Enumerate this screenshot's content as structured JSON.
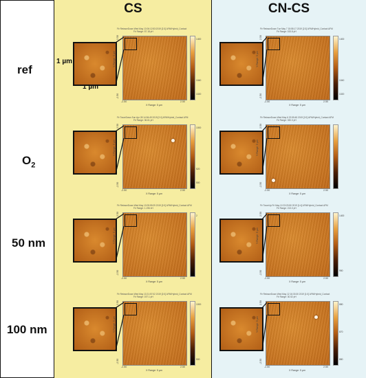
{
  "columns": {
    "cs": "CS",
    "cncs": "CN-CS"
  },
  "rows": [
    {
      "label": "ref"
    },
    {
      "label": "O",
      "sub": "2"
    },
    {
      "label": "50 nm"
    },
    {
      "label": "100 nm"
    }
  ],
  "scale": {
    "vertical": "1 µm",
    "horizontal": "1 µm"
  },
  "panels": {
    "cs": [
      {
        "header": "Fir RetraceDown Wed May 13 06:12:53:2019 [2:3] AFM/Hybrid_Contact",
        "range": "Fir Range: 57.18 pH",
        "cb_ticks": [
          "1400",
          "",
          "",
          "1040",
          "1020"
        ]
      },
      {
        "header": "Fir TraceDown Sun Apr 28 14:54:49 2019 [2:0] AFM/Hybrid_Contact AFM",
        "range": "Fir Range: 36.61 pH",
        "cb_ticks": [
          "1000",
          "",
          "",
          "520",
          "500"
        ]
      },
      {
        "header": "Fir RetraceDown Wed May 13 05:59:29 2019 [2:0] AFM/Hybrid_Contact AFM",
        "range": "Fir Range: 1.196 nH",
        "cb_ticks": [
          "2",
          "",
          "",
          "",
          ""
        ]
      },
      {
        "header": "Fir RetraceDown Wed May 13 21:57:02 2019 [2:0] AFM/Hybrid_Contact AFM",
        "range": "Fir Range: 197.1 pH",
        "cb_ticks": [
          "1000",
          "",
          "",
          "",
          "500"
        ]
      }
    ],
    "cncs": [
      {
        "header": "Fir RetraceDown Tue May 7 15:55:17 2019 [2:3] AFM/Hybrid_Contact AFM",
        "range": "Fir Range: 153.8 pH",
        "cb_ticks": [
          "1400",
          "",
          "",
          "1040",
          "1020"
        ]
      },
      {
        "header": "Fir RetraceDown Wed May 6 22:55:45 2019 [2:0] AFM/Hybrid_Contact AFM",
        "range": "Fir Range: 330.0 pH",
        "cb_ticks": [
          "",
          "",
          "",
          "",
          ""
        ]
      },
      {
        "header": "Fir TraceUp Fri May 10 23:23:50 2019 [1:4] AFM/Hybrid_Contact AFM",
        "range": "Fir Range: 213.0 pH",
        "cb_ticks": [
          "1400",
          "",
          "",
          "",
          "950"
        ]
      },
      {
        "header": "Fir RetraceDown Wed May 12 16:30:30 2019 [1:0] AFM/Hybrid_Contact",
        "range": "Fir Range: 30.52 pH",
        "cb_ticks": [
          "880",
          "",
          "870",
          "",
          "880"
        ]
      }
    ]
  },
  "axes": {
    "ylabel": "Y Range: 5 µm",
    "xlabel": "X Range: 5 µm",
    "x_left": "-2.50",
    "x_right": "2.50",
    "y_top": "2.50",
    "y_bottom": "-2.50"
  },
  "colors": {
    "cs_bg": "#f6eda1",
    "cncs_bg": "#e6f3f6",
    "afm": "#c06a1a"
  }
}
